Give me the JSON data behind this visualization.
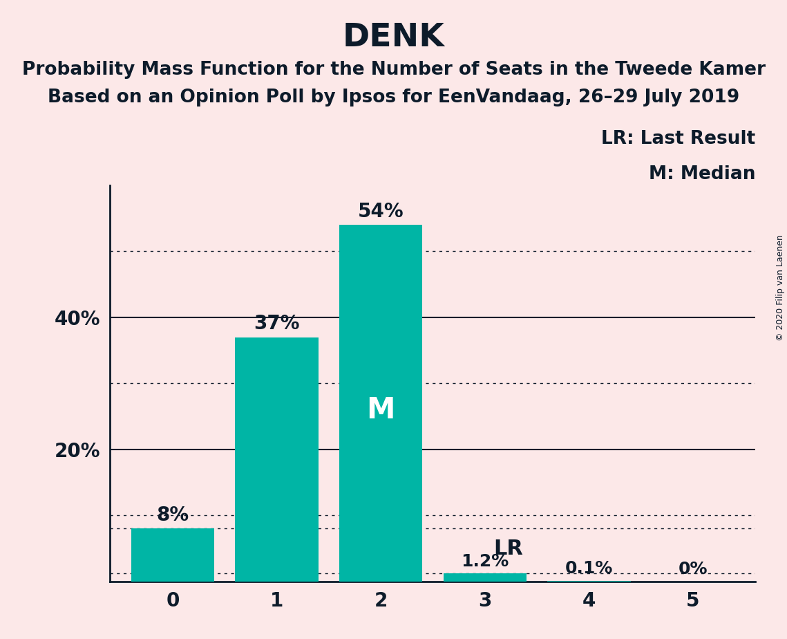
{
  "title": "DENK",
  "subtitle1": "Probability Mass Function for the Number of Seats in the Tweede Kamer",
  "subtitle2": "Based on an Opinion Poll by Ipsos for EenVandaag, 26–29 July 2019",
  "copyright": "© 2020 Filip van Laenen",
  "categories": [
    0,
    1,
    2,
    3,
    4,
    5
  ],
  "values": [
    0.08,
    0.37,
    0.54,
    0.012,
    0.001,
    0.0
  ],
  "labels": [
    "8%",
    "37%",
    "54%",
    "1.2%",
    "0.1%",
    "0%"
  ],
  "bar_color": "#00b5a5",
  "background_color": "#fce8e8",
  "text_color": "#0d1b2a",
  "median_bar": 2,
  "median_label": "M",
  "lr_bar": 3,
  "lr_label": "LR",
  "legend_lr": "LR: Last Result",
  "legend_m": "M: Median",
  "ylim": [
    0,
    0.6
  ],
  "solid_lines": [
    0.2,
    0.4
  ],
  "dotted_lines": [
    0.1,
    0.3,
    0.5,
    0.08,
    0.012
  ],
  "title_fontsize": 34,
  "subtitle_fontsize": 19,
  "label_fontsize": 20,
  "tick_fontsize": 20,
  "legend_fontsize": 19,
  "median_fontsize": 30,
  "lr_fontsize": 22,
  "copyright_fontsize": 9
}
